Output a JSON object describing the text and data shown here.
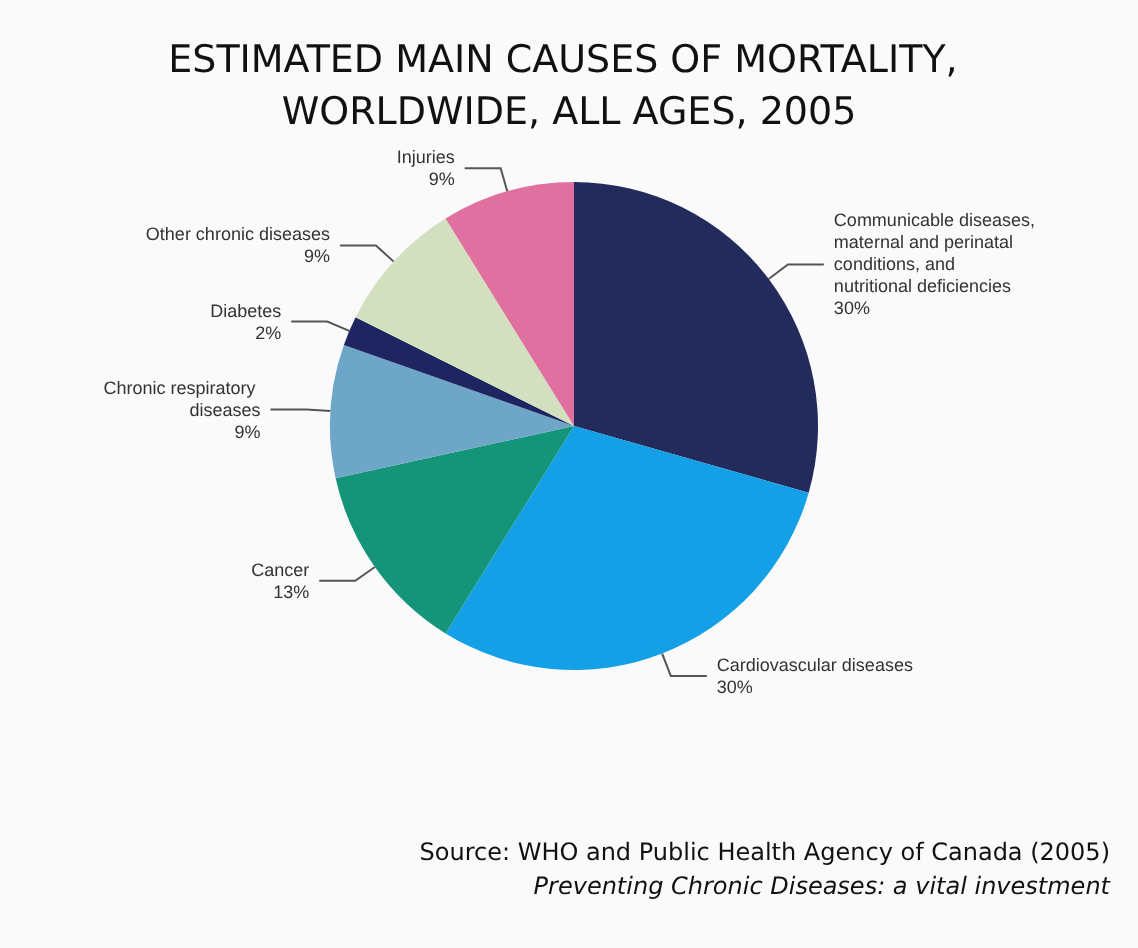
{
  "chart_data": {
    "type": "pie",
    "title": "ESTIMATED MAIN CAUSES OF MORTALITY, WORLDWIDE, ALL AGES, 2005",
    "categories": [
      "Communicable diseases, maternal and perinatal conditions, and nutritional deficiencies",
      "Cardiovascular diseases",
      "Cancer",
      "Chronic respiratory diseases",
      "Diabetes",
      "Other chronic diseases",
      "Injuries"
    ],
    "values": [
      30,
      30,
      13,
      9,
      2,
      9,
      9
    ],
    "value_labels": [
      "30%",
      "30%",
      "13%",
      "9%",
      "2%",
      "9%",
      "9%"
    ],
    "colors": [
      "#232a5c",
      "#14a0e6",
      "#14957a",
      "#6ea6c8",
      "#1e2560",
      "#d3e0c0",
      "#e070a0"
    ],
    "annotations": [
      "Source: WHO and Public Health Agency of Canada (2005)",
      "Preventing Chronic Diseases: a vital investment"
    ],
    "legend": false
  }
}
